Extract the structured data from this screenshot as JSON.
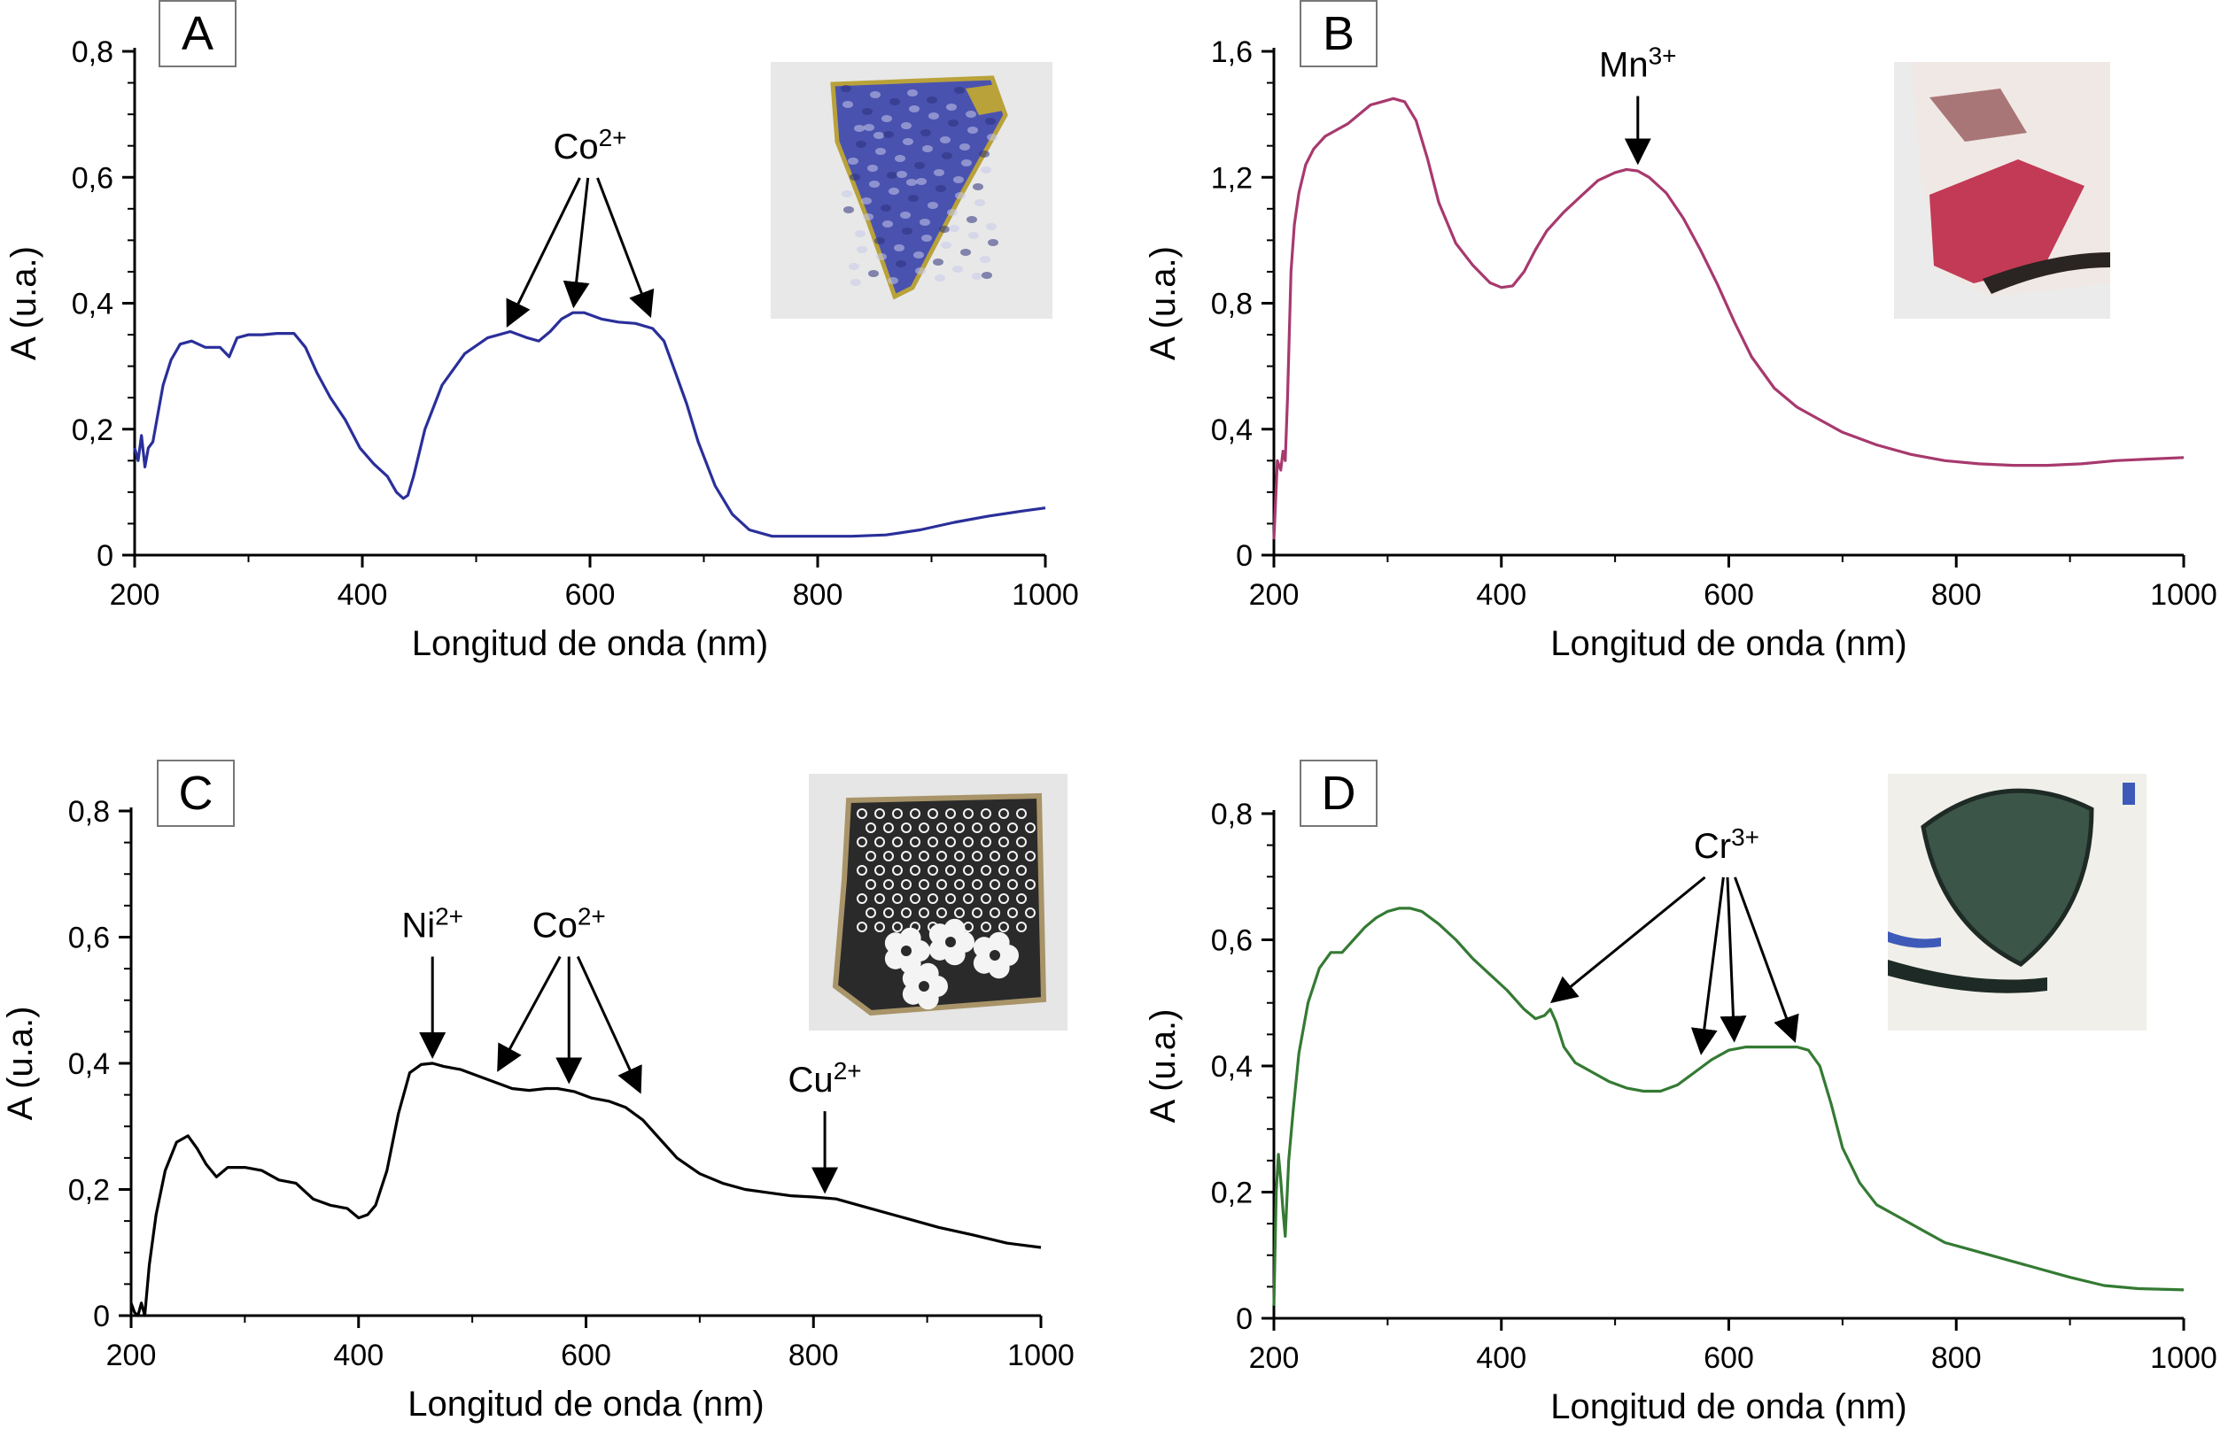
{
  "chart_data": [
    {
      "type": "line",
      "panel_label": "A",
      "xlabel": "Longitud de onda (nm)",
      "ylabel": "A (u.a.)",
      "xlim": [
        200,
        1000
      ],
      "ylim": [
        0,
        0.8
      ],
      "xticks": [
        200,
        400,
        600,
        800,
        1000
      ],
      "xtick_labels": [
        "200",
        "400",
        "600",
        "800",
        "1000"
      ],
      "yticks": [
        0,
        0.2,
        0.4,
        0.6,
        0.8
      ],
      "ytick_labels": [
        "0",
        "0,2",
        "0,4",
        "0,6",
        "0,8"
      ],
      "line_color": "#2a2f9a",
      "series": [
        {
          "x": [
            200,
            203,
            206,
            209,
            212,
            216,
            220,
            225,
            232,
            240,
            250,
            262,
            275,
            283,
            290,
            300,
            312,
            325,
            340,
            350,
            360,
            372,
            385,
            398,
            410,
            422,
            430,
            436,
            440,
            445,
            455,
            470,
            490,
            510,
            530,
            545,
            555,
            565,
            575,
            585,
            595,
            610,
            625,
            640,
            655,
            665,
            675,
            685,
            695,
            710,
            725,
            740,
            760,
            780,
            800,
            830,
            860,
            890,
            920,
            950,
            980,
            1000
          ],
          "y": [
            0.17,
            0.15,
            0.19,
            0.14,
            0.17,
            0.18,
            0.22,
            0.27,
            0.31,
            0.335,
            0.34,
            0.33,
            0.33,
            0.315,
            0.345,
            0.35,
            0.35,
            0.352,
            0.352,
            0.33,
            0.29,
            0.25,
            0.215,
            0.17,
            0.145,
            0.125,
            0.1,
            0.09,
            0.095,
            0.125,
            0.2,
            0.27,
            0.32,
            0.345,
            0.355,
            0.345,
            0.34,
            0.355,
            0.375,
            0.385,
            0.385,
            0.375,
            0.37,
            0.368,
            0.36,
            0.34,
            0.29,
            0.24,
            0.18,
            0.11,
            0.065,
            0.04,
            0.03,
            0.03,
            0.03,
            0.03,
            0.032,
            0.04,
            0.052,
            0.062,
            0.07,
            0.075
          ]
        }
      ],
      "annotations": [
        {
          "text": "Co",
          "sup": "2+",
          "targets": [
            {
              "x": 525,
              "y": 0.355
            },
            {
              "x": 585,
              "y": 0.385
            },
            {
              "x": 655,
              "y": 0.37
            }
          ]
        }
      ]
    },
    {
      "type": "line",
      "panel_label": "B",
      "xlabel": "Longitud de onda (nm)",
      "ylabel": "A (u.a.)",
      "xlim": [
        200,
        1000
      ],
      "ylim": [
        0,
        1.6
      ],
      "xticks": [
        200,
        400,
        600,
        800,
        1000
      ],
      "xtick_labels": [
        "200",
        "400",
        "600",
        "800",
        "1000"
      ],
      "yticks": [
        0,
        0.4,
        0.8,
        1.2,
        1.6
      ],
      "ytick_labels": [
        "0",
        "0,4",
        "0,8",
        "1,2",
        "1,6"
      ],
      "line_color": "#a7396e",
      "series": [
        {
          "x": [
            200,
            203,
            206,
            208,
            210,
            212,
            215,
            218,
            222,
            228,
            235,
            245,
            255,
            265,
            275,
            285,
            295,
            305,
            315,
            325,
            335,
            345,
            360,
            375,
            390,
            400,
            410,
            420,
            430,
            440,
            455,
            470,
            485,
            500,
            510,
            520,
            530,
            545,
            560,
            575,
            590,
            605,
            620,
            640,
            660,
            680,
            700,
            730,
            760,
            790,
            820,
            850,
            880,
            910,
            940,
            970,
            1000
          ],
          "y": [
            0.05,
            0.3,
            0.27,
            0.33,
            0.3,
            0.5,
            0.9,
            1.05,
            1.15,
            1.24,
            1.29,
            1.33,
            1.35,
            1.37,
            1.4,
            1.43,
            1.44,
            1.45,
            1.44,
            1.38,
            1.26,
            1.12,
            0.99,
            0.92,
            0.865,
            0.85,
            0.855,
            0.9,
            0.97,
            1.03,
            1.09,
            1.14,
            1.19,
            1.215,
            1.225,
            1.22,
            1.2,
            1.15,
            1.07,
            0.97,
            0.86,
            0.74,
            0.63,
            0.53,
            0.47,
            0.43,
            0.39,
            0.35,
            0.32,
            0.3,
            0.29,
            0.285,
            0.285,
            0.29,
            0.3,
            0.305,
            0.31
          ]
        }
      ],
      "annotations": [
        {
          "text": "Mn",
          "sup": "3+",
          "targets": [
            {
              "x": 520,
              "y": 1.225
            }
          ]
        }
      ]
    },
    {
      "type": "line",
      "panel_label": "C",
      "xlabel": "Longitud de onda (nm)",
      "ylabel": "A (u.a.)",
      "xlim": [
        200,
        1000
      ],
      "ylim": [
        0,
        0.8
      ],
      "xticks": [
        200,
        400,
        600,
        800,
        1000
      ],
      "xtick_labels": [
        "200",
        "400",
        "600",
        "800",
        "1000"
      ],
      "yticks": [
        0,
        0.2,
        0.4,
        0.6,
        0.8
      ],
      "ytick_labels": [
        "0",
        "0,2",
        "0,4",
        "0,6",
        "0,8"
      ],
      "line_color": "#000000",
      "series": [
        {
          "x": [
            200,
            203,
            206,
            209,
            212,
            216,
            222,
            230,
            240,
            250,
            258,
            266,
            275,
            285,
            300,
            315,
            330,
            345,
            360,
            375,
            390,
            400,
            408,
            415,
            425,
            435,
            445,
            455,
            465,
            475,
            490,
            505,
            520,
            535,
            550,
            565,
            575,
            590,
            605,
            620,
            635,
            650,
            665,
            680,
            700,
            720,
            740,
            760,
            780,
            800,
            820,
            850,
            880,
            910,
            940,
            970,
            1000
          ],
          "y": [
            0.02,
            0.005,
            0.0,
            0.02,
            0.0,
            0.08,
            0.16,
            0.23,
            0.275,
            0.285,
            0.265,
            0.24,
            0.22,
            0.235,
            0.235,
            0.23,
            0.215,
            0.21,
            0.185,
            0.175,
            0.17,
            0.155,
            0.16,
            0.175,
            0.23,
            0.32,
            0.385,
            0.398,
            0.4,
            0.395,
            0.39,
            0.38,
            0.37,
            0.36,
            0.357,
            0.36,
            0.36,
            0.355,
            0.345,
            0.34,
            0.33,
            0.31,
            0.28,
            0.25,
            0.225,
            0.21,
            0.2,
            0.195,
            0.19,
            0.188,
            0.185,
            0.17,
            0.155,
            0.14,
            0.128,
            0.115,
            0.108
          ]
        }
      ],
      "annotations": [
        {
          "text": "Ni",
          "sup": "2+",
          "targets": [
            {
              "x": 465,
              "y": 0.4
            }
          ]
        },
        {
          "text": "Co",
          "sup": "2+",
          "targets": [
            {
              "x": 520,
              "y": 0.38
            },
            {
              "x": 585,
              "y": 0.36
            },
            {
              "x": 650,
              "y": 0.345
            }
          ]
        },
        {
          "text": "Cu",
          "sup": "2+",
          "targets": [
            {
              "x": 810,
              "y": 0.186
            }
          ]
        }
      ]
    },
    {
      "type": "line",
      "panel_label": "D",
      "xlabel": "Longitud de onda (nm)",
      "ylabel": "A (u.a.)",
      "xlim": [
        200,
        1000
      ],
      "ylim": [
        0,
        0.8
      ],
      "xticks": [
        200,
        400,
        600,
        800,
        1000
      ],
      "xtick_labels": [
        "200",
        "400",
        "600",
        "800",
        "1000"
      ],
      "yticks": [
        0,
        0.2,
        0.4,
        0.6,
        0.8
      ],
      "ytick_labels": [
        "0",
        "0,2",
        "0,4",
        "0,6",
        "0,8"
      ],
      "line_color": "#347a33",
      "series": [
        {
          "x": [
            200,
            202,
            204,
            206,
            208,
            210,
            213,
            217,
            222,
            230,
            240,
            250,
            260,
            270,
            280,
            290,
            300,
            310,
            320,
            330,
            345,
            360,
            375,
            390,
            405,
            420,
            430,
            438,
            443,
            448,
            455,
            465,
            480,
            495,
            510,
            525,
            540,
            555,
            570,
            585,
            600,
            615,
            630,
            645,
            660,
            670,
            680,
            690,
            700,
            715,
            730,
            750,
            770,
            790,
            810,
            840,
            870,
            900,
            930,
            960,
            1000
          ],
          "y": [
            0.02,
            0.2,
            0.26,
            0.22,
            0.17,
            0.13,
            0.25,
            0.33,
            0.42,
            0.5,
            0.555,
            0.58,
            0.58,
            0.6,
            0.62,
            0.635,
            0.645,
            0.65,
            0.65,
            0.645,
            0.625,
            0.6,
            0.57,
            0.545,
            0.52,
            0.49,
            0.475,
            0.48,
            0.49,
            0.47,
            0.43,
            0.405,
            0.39,
            0.375,
            0.365,
            0.36,
            0.36,
            0.37,
            0.39,
            0.41,
            0.425,
            0.43,
            0.43,
            0.43,
            0.43,
            0.425,
            0.4,
            0.34,
            0.27,
            0.215,
            0.18,
            0.16,
            0.14,
            0.12,
            0.11,
            0.095,
            0.08,
            0.065,
            0.052,
            0.047,
            0.045
          ]
        }
      ],
      "annotations": [
        {
          "text": "Cr",
          "sup": "3+",
          "targets": [
            {
              "x": 440,
              "y": 0.495
            },
            {
              "x": 575,
              "y": 0.41
            },
            {
              "x": 605,
              "y": 0.43
            },
            {
              "x": 660,
              "y": 0.43
            }
          ]
        }
      ]
    }
  ],
  "photos": [
    {
      "subject": "blue-ceramic-shard",
      "colors": {
        "bg": "#e8e8e8",
        "body": "#4a52b0",
        "dark": "#2c2f7a",
        "light": "#c7c9ea",
        "gold": "#b9a23a"
      }
    },
    {
      "subject": "red-ceramic-shard",
      "colors": {
        "bg": "#ebebeb",
        "body": "#c23a55",
        "dark": "#7a2a2e",
        "light": "#f0e8e4",
        "edge": "#2a2423"
      }
    },
    {
      "subject": "black-white-floral-shard",
      "colors": {
        "bg": "#e6e6e6",
        "body": "#2a2a2a",
        "light": "#f4f4f4",
        "gold": "#a89468"
      }
    },
    {
      "subject": "green-leaf-shard",
      "colors": {
        "bg": "#e8e8e8",
        "body": "#3b5549",
        "dark": "#1e2a25",
        "light": "#f1efe9",
        "blue": "#3e5ab8"
      }
    }
  ]
}
